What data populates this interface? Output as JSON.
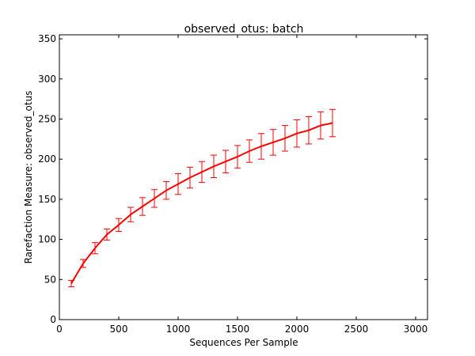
{
  "chart_data": {
    "type": "line",
    "title": "observed_otus: batch",
    "xlabel": "Sequences Per Sample",
    "ylabel": "Rarefaction Measure: observed_otus",
    "xlim": [
      0,
      3100
    ],
    "ylim": [
      0,
      355
    ],
    "xticks": [
      0,
      500,
      1000,
      1500,
      2000,
      2500,
      3000
    ],
    "yticks": [
      0,
      50,
      100,
      150,
      200,
      250,
      300,
      350
    ],
    "grid": false,
    "legend": "none",
    "series_color": "#ff0000",
    "x": [
      100,
      200,
      300,
      400,
      500,
      600,
      700,
      800,
      900,
      1000,
      1100,
      1200,
      1300,
      1400,
      1500,
      1600,
      1700,
      1800,
      1900,
      2000,
      2100,
      2200,
      2300
    ],
    "series": [
      {
        "values": [
          45,
          70,
          89,
          106,
          118,
          131,
          141,
          151,
          161,
          169,
          177,
          184,
          191,
          197,
          203,
          210,
          216,
          221,
          226,
          232,
          236,
          242,
          245
        ],
        "errors": [
          4,
          5,
          7,
          7,
          8,
          9,
          11,
          11,
          11,
          13,
          13,
          13,
          14,
          14,
          14,
          14,
          16,
          16,
          16,
          17,
          17,
          17,
          17
        ]
      }
    ]
  }
}
